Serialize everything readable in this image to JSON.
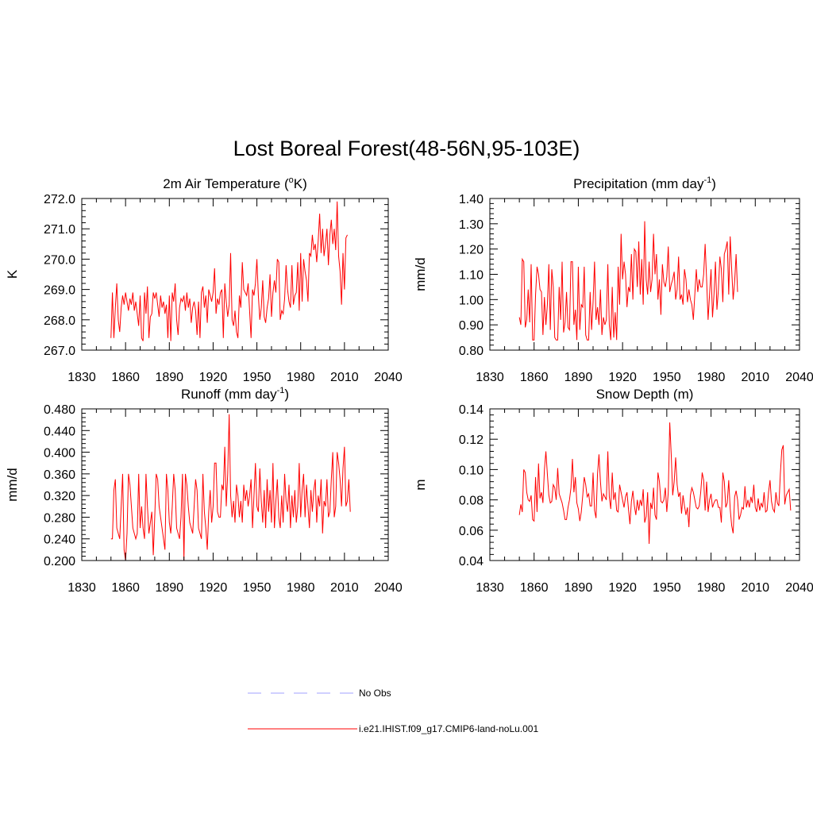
{
  "title": "Lost Boreal Forest(48-56N,95-103E)",
  "colors": {
    "model": "#ff0000",
    "obs": "#a0a0ff",
    "axis": "#000000"
  },
  "legend": {
    "obs_label": "No Obs",
    "model_label": "i.e21.IHIST.f09_g17.CMIP6-land-noLu.001"
  },
  "chart_data": [
    {
      "type": "line",
      "title": "2m Air Temperature (°K)",
      "ylabel": "K",
      "xlim": [
        1830,
        2040
      ],
      "xticks": [
        1830,
        1860,
        1890,
        1920,
        1950,
        1980,
        2010,
        2040
      ],
      "ylim": [
        267.0,
        272.0
      ],
      "yticks": [
        "267.0",
        "268.0",
        "269.0",
        "270.0",
        "271.0",
        "272.0"
      ],
      "series": [
        {
          "x_start": 1850,
          "x_step": 1,
          "values": [
            267.4,
            268.9,
            267.4,
            268.4,
            269.2,
            268.0,
            267.6,
            268.4,
            268.8,
            268.5,
            268.9,
            268.6,
            268.3,
            268.7,
            268.5,
            268.9,
            268.3,
            268.6,
            268.2,
            267.8,
            268.8,
            267.4,
            267.3,
            268.9,
            268.2,
            269.1,
            267.4,
            268.1,
            268.2,
            268.9,
            268.7,
            268.9,
            268.5,
            268.1,
            268.8,
            268.4,
            268.6,
            268.2,
            268.5,
            267.4,
            268.8,
            267.3,
            268.9,
            268.6,
            269.2,
            268.0,
            267.5,
            268.4,
            268.7,
            268.6,
            268.8,
            268.3,
            268.9,
            268.4,
            268.7,
            267.9,
            268.4,
            268.6,
            268.3,
            267.5,
            268.6,
            267.4,
            268.9,
            269.1,
            268.4,
            268.8,
            267.9,
            269.0,
            268.8,
            268.6,
            268.9,
            269.7,
            268.2,
            268.7,
            268.5,
            268.9,
            269.0,
            267.4,
            269.2,
            268.6,
            268.1,
            268.5,
            270.2,
            268.0,
            267.8,
            268.3,
            267.6,
            267.4,
            268.8,
            268.4,
            269.9,
            269.0,
            268.9,
            268.8,
            269.2,
            268.3,
            267.4,
            269.0,
            268.8,
            269.2,
            270.0,
            268.8,
            268.0,
            268.4,
            269.3,
            268.1,
            267.9,
            268.4,
            268.7,
            269.5,
            268.1,
            268.9,
            269.3,
            268.9,
            270.0,
            269.9,
            268.0,
            268.3,
            268.2,
            268.7,
            269.8,
            269.0,
            268.6,
            268.4,
            269.8,
            268.5,
            268.8,
            268.9,
            269.9,
            268.3,
            270.2,
            268.6,
            270.0,
            269.6,
            269.3,
            268.6,
            270.2,
            270.1,
            270.8,
            270.3,
            270.5,
            269.9,
            270.6,
            271.5,
            270.2,
            271.0,
            270.1,
            270.5,
            271.0,
            269.8,
            270.8,
            271.3,
            270.5,
            271.0,
            270.3,
            271.9,
            270.1,
            269.6,
            268.5,
            270.2,
            269.0,
            270.7,
            270.8
          ]
        }
      ]
    },
    {
      "type": "line",
      "title": "Precipitation (mm day-1)",
      "ylabel": "mm/d",
      "xlim": [
        1830,
        2040
      ],
      "xticks": [
        1830,
        1860,
        1890,
        1920,
        1950,
        1980,
        2010,
        2040
      ],
      "ylim": [
        0.8,
        1.4
      ],
      "yticks": [
        "0.80",
        "0.90",
        "1.00",
        "1.10",
        "1.20",
        "1.30",
        "1.40"
      ],
      "series": [
        {
          "x_start": 1850,
          "x_step": 1,
          "values": [
            0.93,
            0.9,
            1.16,
            1.15,
            0.89,
            0.92,
            1.04,
            0.91,
            1.14,
            0.84,
            0.84,
            1.02,
            1.13,
            1.1,
            1.04,
            1.03,
            0.86,
            1.01,
            0.9,
            0.98,
            1.14,
            0.88,
            1.12,
            1.05,
            0.85,
            0.84,
            0.84,
            1.05,
            0.92,
            1.15,
            0.87,
            0.91,
            1.03,
            0.89,
            0.88,
            1.15,
            1.15,
            0.9,
            0.96,
            0.84,
            1.13,
            0.88,
            0.98,
            0.97,
            1.13,
            0.86,
            0.84,
            0.84,
            1.03,
            0.88,
            0.99,
            1.15,
            0.92,
            0.97,
            0.9,
            1.04,
            0.86,
            0.93,
            0.9,
            0.92,
            1.14,
            0.9,
            0.84,
            1.05,
            0.85,
            0.95,
            0.84,
            1.13,
            0.98,
            1.26,
            1.08,
            1.15,
            1.1,
            0.97,
            1.05,
            1.03,
            1.18,
            1.0,
            1.2,
            1.19,
            1.05,
            1.23,
            1.02,
            1.16,
            0.98,
            1.31,
            1.08,
            1.02,
            1.15,
            1.03,
            1.08,
            1.26,
            1.1,
            1.18,
            1.0,
            1.08,
            0.94,
            1.14,
            1.07,
            1.05,
            1.09,
            1.21,
            1.03,
            1.06,
            1.08,
            1.11,
            1.0,
            1.04,
            1.17,
            1.0,
            1.02,
            0.98,
            1.12,
            1.08,
            0.99,
            1.04,
            1.0,
            0.98,
            0.92,
            1.02,
            1.12,
            1.03,
            1.08,
            1.05,
            1.05,
            1.1,
            1.22,
            1.08,
            0.92,
            1.02,
            1.12,
            0.93,
            1.02,
            1.15,
            0.96,
            1.04,
            1.17,
            1.12,
            0.99,
            1.18,
            1.2,
            1.23,
            1.02,
            1.25,
            1.12,
            1.0,
            1.07,
            1.18,
            1.03
          ]
        }
      ]
    },
    {
      "type": "line",
      "title": "Runoff (mm day-1)",
      "ylabel": "mm/d",
      "xlim": [
        1830,
        2040
      ],
      "xticks": [
        1830,
        1860,
        1890,
        1920,
        1950,
        1980,
        2010,
        2040
      ],
      "ylim": [
        0.2,
        0.48
      ],
      "yticks": [
        "0.200",
        "0.240",
        "0.280",
        "0.320",
        "0.360",
        "0.400",
        "0.440",
        "0.480"
      ],
      "series": [
        {
          "x_start": 1850,
          "x_step": 1,
          "values": [
            0.24,
            0.24,
            0.33,
            0.35,
            0.26,
            0.25,
            0.24,
            0.3,
            0.36,
            0.22,
            0.2,
            0.25,
            0.36,
            0.34,
            0.3,
            0.26,
            0.25,
            0.24,
            0.25,
            0.36,
            0.26,
            0.3,
            0.26,
            0.24,
            0.36,
            0.3,
            0.25,
            0.27,
            0.29,
            0.21,
            0.28,
            0.36,
            0.35,
            0.3,
            0.28,
            0.26,
            0.24,
            0.22,
            0.36,
            0.33,
            0.27,
            0.25,
            0.3,
            0.36,
            0.33,
            0.26,
            0.25,
            0.24,
            0.28,
            0.36,
            0.2,
            0.36,
            0.34,
            0.3,
            0.27,
            0.26,
            0.25,
            0.3,
            0.35,
            0.33,
            0.26,
            0.25,
            0.24,
            0.36,
            0.29,
            0.26,
            0.22,
            0.29,
            0.33,
            0.27,
            0.3,
            0.38,
            0.38,
            0.29,
            0.28,
            0.28,
            0.34,
            0.33,
            0.41,
            0.3,
            0.36,
            0.47,
            0.32,
            0.28,
            0.31,
            0.27,
            0.34,
            0.32,
            0.28,
            0.31,
            0.27,
            0.34,
            0.31,
            0.33,
            0.3,
            0.32,
            0.35,
            0.26,
            0.32,
            0.38,
            0.3,
            0.29,
            0.37,
            0.31,
            0.27,
            0.33,
            0.26,
            0.35,
            0.29,
            0.33,
            0.27,
            0.38,
            0.26,
            0.31,
            0.35,
            0.28,
            0.26,
            0.32,
            0.27,
            0.36,
            0.31,
            0.29,
            0.34,
            0.26,
            0.32,
            0.28,
            0.33,
            0.27,
            0.3,
            0.38,
            0.28,
            0.33,
            0.36,
            0.28,
            0.34,
            0.3,
            0.26,
            0.33,
            0.29,
            0.33,
            0.35,
            0.27,
            0.32,
            0.3,
            0.35,
            0.25,
            0.31,
            0.3,
            0.35,
            0.28,
            0.29,
            0.35,
            0.4,
            0.28,
            0.3,
            0.4,
            0.38,
            0.35,
            0.3,
            0.37,
            0.41,
            0.3,
            0.31,
            0.35,
            0.29
          ]
        }
      ]
    },
    {
      "type": "line",
      "title": "Snow Depth (m)",
      "ylabel": "m",
      "xlim": [
        1830,
        2040
      ],
      "xticks": [
        1830,
        1860,
        1890,
        1920,
        1950,
        1980,
        2010,
        2040
      ],
      "ylim": [
        0.04,
        0.14
      ],
      "yticks": [
        "0.04",
        "0.06",
        "0.08",
        "0.10",
        "0.12",
        "0.14"
      ],
      "series": [
        {
          "x_start": 1850,
          "x_step": 1,
          "values": [
            0.07,
            0.077,
            0.072,
            0.1,
            0.098,
            0.085,
            0.08,
            0.079,
            0.083,
            0.067,
            0.066,
            0.095,
            0.072,
            0.104,
            0.081,
            0.085,
            0.078,
            0.1,
            0.112,
            0.097,
            0.083,
            0.078,
            0.079,
            0.09,
            0.088,
            0.08,
            0.101,
            0.084,
            0.081,
            0.078,
            0.073,
            0.067,
            0.067,
            0.075,
            0.08,
            0.088,
            0.107,
            0.085,
            0.095,
            0.078,
            0.074,
            0.066,
            0.072,
            0.083,
            0.095,
            0.09,
            0.082,
            0.084,
            0.076,
            0.076,
            0.098,
            0.073,
            0.068,
            0.097,
            0.11,
            0.092,
            0.079,
            0.084,
            0.082,
            0.08,
            0.112,
            0.082,
            0.074,
            0.098,
            0.08,
            0.085,
            0.073,
            0.072,
            0.09,
            0.085,
            0.08,
            0.075,
            0.082,
            0.085,
            0.074,
            0.064,
            0.079,
            0.086,
            0.076,
            0.07,
            0.08,
            0.073,
            0.08,
            0.076,
            0.087,
            0.065,
            0.069,
            0.085,
            0.051,
            0.078,
            0.074,
            0.088,
            0.07,
            0.067,
            0.098,
            0.092,
            0.079,
            0.078,
            0.08,
            0.088,
            0.072,
            0.085,
            0.131,
            0.11,
            0.083,
            0.092,
            0.108,
            0.09,
            0.082,
            0.085,
            0.071,
            0.083,
            0.076,
            0.07,
            0.075,
            0.062,
            0.083,
            0.088,
            0.085,
            0.08,
            0.075,
            0.074,
            0.076,
            0.085,
            0.098,
            0.093,
            0.073,
            0.092,
            0.072,
            0.08,
            0.084,
            0.075,
            0.078,
            0.08,
            0.08,
            0.075,
            0.075,
            0.065,
            0.098,
            0.092,
            0.075,
            0.078,
            0.093,
            0.074,
            0.063,
            0.058,
            0.082,
            0.086,
            0.08,
            0.067,
            0.07,
            0.075,
            0.074,
            0.089,
            0.075,
            0.08,
            0.075,
            0.082,
            0.078,
            0.09,
            0.075,
            0.072,
            0.081,
            0.073,
            0.078,
            0.075,
            0.085,
            0.072,
            0.073,
            0.085,
            0.093,
            0.079,
            0.074,
            0.072,
            0.085,
            0.078,
            0.076,
            0.097,
            0.113,
            0.116,
            0.077,
            0.083,
            0.085,
            0.087,
            0.073
          ]
        }
      ]
    }
  ]
}
